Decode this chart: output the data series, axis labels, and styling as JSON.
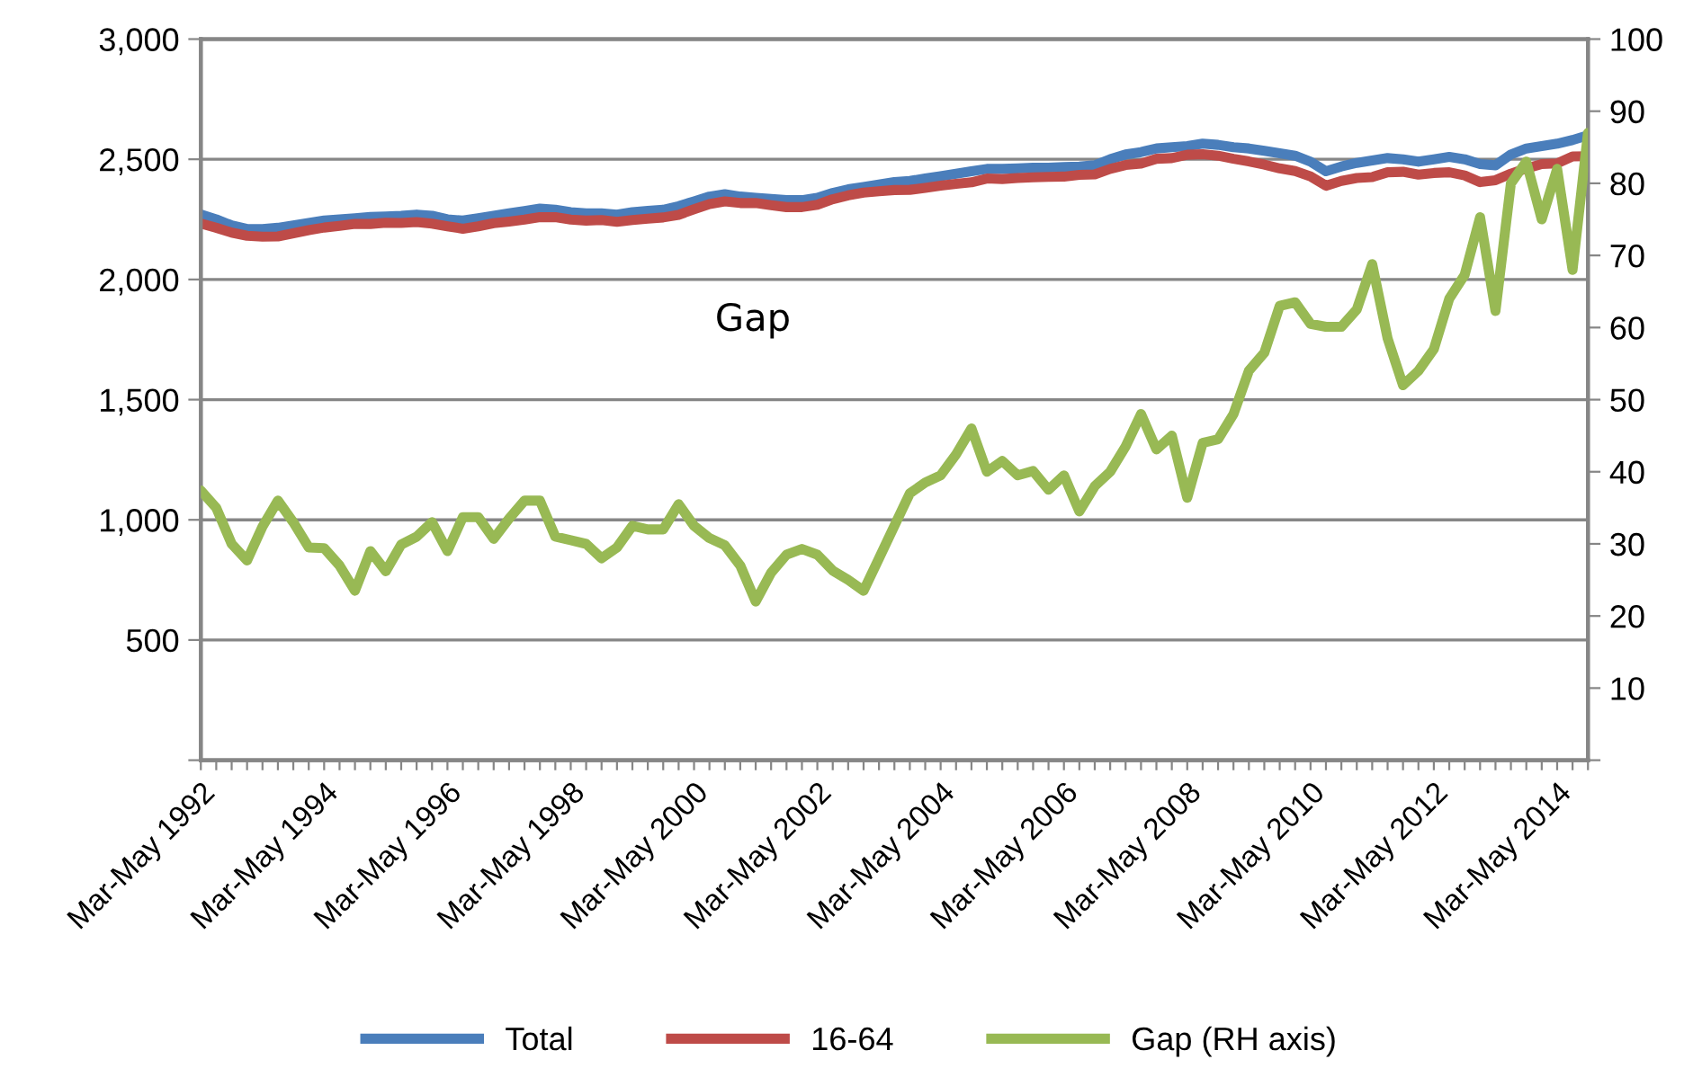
{
  "chart_data": {
    "type": "line",
    "categories": [
      "Mar-May 1992",
      null,
      null,
      null,
      null,
      null,
      null,
      null,
      "Mar-May 1994",
      null,
      null,
      null,
      null,
      null,
      null,
      null,
      "Mar-May 1996",
      null,
      null,
      null,
      null,
      null,
      null,
      null,
      "Mar-May 1998",
      null,
      null,
      null,
      null,
      null,
      null,
      null,
      "Mar-May 2000",
      null,
      null,
      null,
      null,
      null,
      null,
      null,
      "Mar-May 2002",
      null,
      null,
      null,
      null,
      null,
      null,
      null,
      "Mar-May 2004",
      null,
      null,
      null,
      null,
      null,
      null,
      null,
      "Mar-May 2006",
      null,
      null,
      null,
      null,
      null,
      null,
      null,
      "Mar-May 2008",
      null,
      null,
      null,
      null,
      null,
      null,
      null,
      "Mar-May 2010",
      null,
      null,
      null,
      null,
      null,
      null,
      null,
      "Mar-May 2012",
      null,
      null,
      null,
      null,
      null,
      null,
      null,
      "Mar-May 2014",
      null,
      null
    ],
    "series": [
      {
        "name": "Total",
        "color": "#4a7ebb",
        "values": [
          2270,
          2250,
          2225,
          2210,
          2210,
          2215,
          2225,
          2235,
          2245,
          2250,
          2255,
          2260,
          2262,
          2265,
          2270,
          2265,
          2250,
          2245,
          2255,
          2265,
          2275,
          2285,
          2295,
          2290,
          2280,
          2275,
          2275,
          2270,
          2280,
          2285,
          2290,
          2305,
          2325,
          2345,
          2355,
          2345,
          2340,
          2335,
          2330,
          2330,
          2340,
          2360,
          2375,
          2385,
          2395,
          2405,
          2410,
          2420,
          2430,
          2440,
          2450,
          2460,
          2460,
          2462,
          2465,
          2465,
          2468,
          2470,
          2475,
          2500,
          2520,
          2530,
          2545,
          2550,
          2555,
          2565,
          2560,
          2550,
          2545,
          2535,
          2525,
          2515,
          2490,
          2450,
          2470,
          2485,
          2495,
          2505,
          2500,
          2490,
          2500,
          2510,
          2500,
          2480,
          2475,
          2520,
          2545,
          2555,
          2565,
          2580,
          2600
        ]
      },
      {
        "name": "16-64",
        "color": "#be4b48",
        "values": [
          2233,
          2215,
          2195,
          2182,
          2178,
          2179,
          2192,
          2205,
          2216,
          2223,
          2231,
          2231,
          2236,
          2235,
          2239,
          2232,
          2221,
          2211,
          2221,
          2234,
          2241,
          2249,
          2259,
          2259,
          2249,
          2245,
          2247,
          2240,
          2247,
          2253,
          2258,
          2269,
          2292,
          2314,
          2325,
          2318,
          2318,
          2309,
          2301,
          2301,
          2311,
          2334,
          2350,
          2361,
          2367,
          2372,
          2373,
          2381,
          2390,
          2398,
          2404,
          2420,
          2418,
          2422,
          2425,
          2427,
          2428,
          2435,
          2437,
          2460,
          2476,
          2482,
          2502,
          2505,
          2519,
          2521,
          2515,
          2502,
          2491,
          2478,
          2462,
          2451,
          2429,
          2390,
          2410,
          2422,
          2426,
          2446,
          2448,
          2436,
          2443,
          2446,
          2433,
          2405,
          2413,
          2440,
          2462,
          2480,
          2483,
          2512,
          2513
        ]
      },
      {
        "name": "Gap (RH axis)",
        "color": "#98b954",
        "axis": "y2",
        "values": [
          37.4,
          35,
          30,
          27.7,
          32.4,
          36,
          33,
          29.5,
          29.4,
          27,
          23.5,
          29,
          26.2,
          29.9,
          31,
          33,
          29,
          33.7,
          33.7,
          30.7,
          33.5,
          36,
          36,
          31,
          30.5,
          30,
          28,
          29.5,
          32.5,
          32,
          32,
          35.5,
          32.5,
          30.8,
          29.8,
          27,
          22,
          26,
          28.5,
          29.3,
          28.5,
          26.3,
          25,
          23.5,
          28,
          32.5,
          37,
          38.5,
          39.5,
          42.4,
          46,
          40,
          41.5,
          39.5,
          40.1,
          37.5,
          39.5,
          34.5,
          38,
          40,
          43.5,
          48,
          43.1,
          45,
          36.4,
          44,
          44.5,
          48,
          54,
          56.5,
          63,
          63.5,
          60.5,
          60.1,
          60.1,
          62.5,
          68.8,
          58.5,
          52,
          54,
          57,
          64,
          67.3,
          75.3,
          62.3,
          80,
          83,
          75,
          82,
          68,
          87
        ]
      }
    ],
    "ylim": [
      0,
      3000
    ],
    "yticks": [
      {
        "value": 0,
        "label": null
      },
      {
        "value": 500,
        "label": "500"
      },
      {
        "value": 1000,
        "label": "1,000"
      },
      {
        "value": 1500,
        "label": "1,500"
      },
      {
        "value": 2000,
        "label": "2,000"
      },
      {
        "value": 2500,
        "label": "2,500"
      },
      {
        "value": 3000,
        "label": "3,000"
      }
    ],
    "y2lim": [
      0,
      100
    ],
    "y2ticks": [
      {
        "value": 0,
        "label": null
      },
      10,
      20,
      30,
      40,
      50,
      60,
      70,
      80,
      90,
      100
    ],
    "grid": "y",
    "legend": "bottom",
    "line_style": "solid",
    "marker": "none",
    "annotations": [
      "Gap"
    ]
  }
}
